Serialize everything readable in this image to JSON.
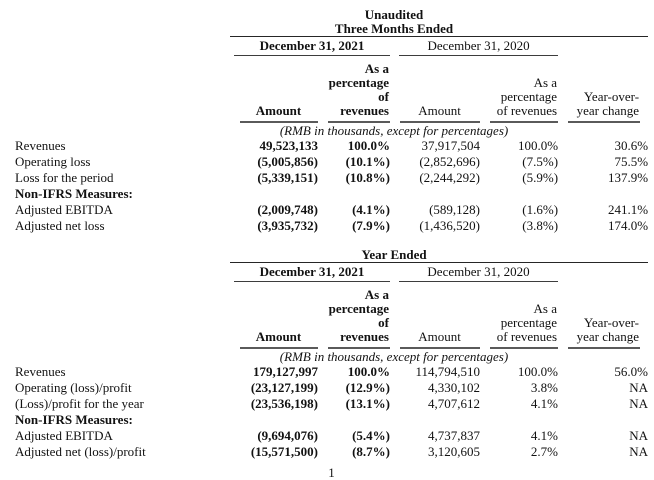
{
  "page_number": "1",
  "t1": {
    "title_lines": [
      "Unaudited",
      "Three Months Ended"
    ],
    "date_2021": "December 31, 2021",
    "date_2020": "December 31, 2020",
    "h_amount_2021": "Amount",
    "h_pct_2021": [
      "As a",
      "percentage",
      "of revenues"
    ],
    "h_amount_2020": "Amount",
    "h_pct_2020": [
      "As a",
      "percentage",
      "of revenues"
    ],
    "h_yoy": [
      "Year-over-",
      "year change"
    ],
    "note": "(RMB in thousands, except for percentages)",
    "rows": [
      {
        "label": "Revenues",
        "c1": "49,523,133",
        "c2": "100.0%",
        "c3": "37,917,504",
        "c4": "100.0%",
        "c5": "30.6%"
      },
      {
        "label": "Operating loss",
        "c1": "(5,005,856)",
        "c2": "(10.1%)",
        "c3": "(2,852,696)",
        "c4": "(7.5%)",
        "c5": "75.5%"
      },
      {
        "label": "Loss for the period",
        "c1": "(5,339,151)",
        "c2": "(10.8%)",
        "c3": "(2,244,292)",
        "c4": "(5.9%)",
        "c5": "137.9%"
      },
      {
        "label": "Non-IFRS Measures:",
        "c1": "",
        "c2": "",
        "c3": "",
        "c4": "",
        "c5": ""
      },
      {
        "label": "Adjusted EBITDA",
        "c1": "(2,009,748)",
        "c2": "(4.1%)",
        "c3": "(589,128)",
        "c4": "(1.6%)",
        "c5": "241.1%"
      },
      {
        "label": "Adjusted net loss",
        "c1": "(3,935,732)",
        "c2": "(7.9%)",
        "c3": "(1,436,520)",
        "c4": "(3.8%)",
        "c5": "174.0%"
      }
    ]
  },
  "t2": {
    "title_lines": [
      "Year Ended"
    ],
    "date_2021": "December 31, 2021",
    "date_2020": "December 31, 2020",
    "h_amount_2021": "Amount",
    "h_pct_2021": [
      "As a",
      "percentage",
      "of revenues"
    ],
    "h_amount_2020": "Amount",
    "h_pct_2020": [
      "As a",
      "percentage",
      "of revenues"
    ],
    "h_yoy": [
      "Year-over-",
      "year change"
    ],
    "note": "(RMB in thousands, except for percentages)",
    "rows": [
      {
        "label": "Revenues",
        "c1": "179,127,997",
        "c2": "100.0%",
        "c3": "114,794,510",
        "c4": "100.0%",
        "c5": "56.0%"
      },
      {
        "label": "Operating (loss)/profit",
        "c1": "(23,127,199)",
        "c2": "(12.9%)",
        "c3": "4,330,102",
        "c4": "3.8%",
        "c5": "NA"
      },
      {
        "label": "(Loss)/profit for the year",
        "c1": "(23,536,198)",
        "c2": "(13.1%)",
        "c3": "4,707,612",
        "c4": "4.1%",
        "c5": "NA"
      },
      {
        "label": "Non-IFRS Measures:",
        "c1": "",
        "c2": "",
        "c3": "",
        "c4": "",
        "c5": ""
      },
      {
        "label": "Adjusted EBITDA",
        "c1": "(9,694,076)",
        "c2": "(5.4%)",
        "c3": "4,737,837",
        "c4": "4.1%",
        "c5": "NA"
      },
      {
        "label": "Adjusted net (loss)/profit",
        "c1": "(15,571,500)",
        "c2": "(8.7%)",
        "c3": "3,120,605",
        "c4": "2.7%",
        "c5": "NA"
      }
    ]
  }
}
